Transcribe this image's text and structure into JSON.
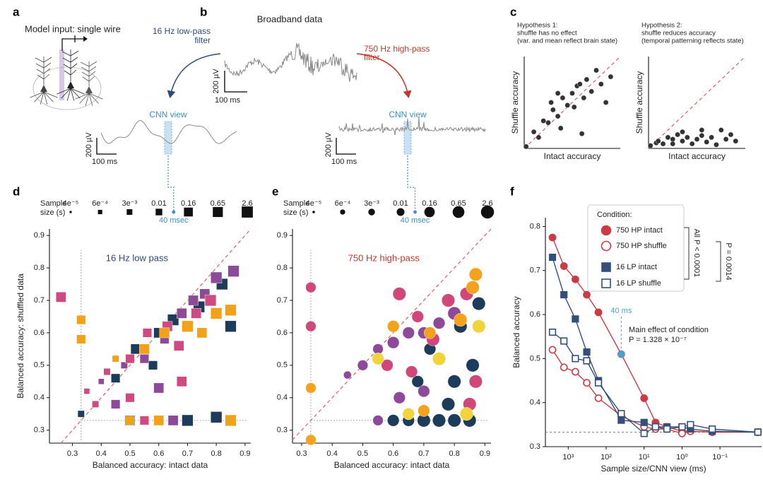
{
  "panel_labels": [
    "a",
    "b",
    "c",
    "d",
    "e",
    "f"
  ],
  "panel_a": {
    "title": "Model input: single wire"
  },
  "panel_b": {
    "title": "Broadband data",
    "low_pass": [
      "16 Hz low-pass",
      "filter"
    ],
    "high_pass": [
      "750 Hz high-pass",
      "filter"
    ],
    "cnn_view": "CNN view",
    "amplitude_scale": "200 µV",
    "time_scale": "100 ms"
  },
  "chart_data": [
    {
      "type": "scatter",
      "title": [
        "Hypothesis 1:",
        "shuffle has no effect",
        "(var. and mean reflect brain state)"
      ],
      "x_label": "Intact accuracy",
      "y_label": "Shuffle accuracy",
      "xlim": [
        0,
        1
      ],
      "ylim": [
        0,
        1
      ],
      "identity_line": true,
      "series": [
        {
          "color": "#333333",
          "x": [
            0.02,
            0.1,
            0.15,
            0.2,
            0.25,
            0.3,
            0.35,
            0.38,
            0.4,
            0.45,
            0.5,
            0.52,
            0.55,
            0.58,
            0.6,
            0.62,
            0.65,
            0.7,
            0.75,
            0.8,
            0.85,
            0.9,
            0.35,
            0.28
          ],
          "y": [
            0.02,
            0.18,
            0.12,
            0.3,
            0.28,
            0.42,
            0.35,
            0.22,
            0.55,
            0.47,
            0.6,
            0.45,
            0.68,
            0.7,
            0.16,
            0.55,
            0.75,
            0.62,
            0.85,
            0.7,
            0.5,
            0.78,
            0.6,
            0.5
          ]
        }
      ]
    },
    {
      "type": "scatter",
      "title": [
        "Hypothesis 2:",
        "shuffle reduces accuracy",
        "(temporal patterning reflects state)"
      ],
      "x_label": "Intact accuracy",
      "y_label": "Shuffle accuracy",
      "xlim": [
        0,
        1
      ],
      "ylim": [
        0,
        1
      ],
      "identity_line": true,
      "series": [
        {
          "color": "#333333",
          "x": [
            0.02,
            0.08,
            0.1,
            0.15,
            0.2,
            0.25,
            0.3,
            0.35,
            0.4,
            0.45,
            0.5,
            0.55,
            0.6,
            0.65,
            0.7,
            0.75,
            0.8,
            0.85,
            0.9,
            0.55,
            0.35,
            0.25
          ],
          "y": [
            0.03,
            0.06,
            0.08,
            0.05,
            0.12,
            0.1,
            0.15,
            0.08,
            0.12,
            0.05,
            0.1,
            0.14,
            0.07,
            0.12,
            0.04,
            0.2,
            0.1,
            0.15,
            0.08,
            0.2,
            0.18,
            0.05
          ]
        }
      ]
    },
    {
      "type": "scatter",
      "title": "16 Hz low pass",
      "title_color": "#2e4a6e",
      "x_label": "Balanced accuracy: intact data",
      "y_label": "Balanced accuracy: shuffled data",
      "xlim": [
        0.22,
        0.92
      ],
      "ylim": [
        0.26,
        0.92
      ],
      "xticks": [
        0.3,
        0.4,
        0.5,
        0.6,
        0.7,
        0.8,
        0.9
      ],
      "yticks": [
        0.3,
        0.4,
        0.5,
        0.6,
        0.7,
        0.8,
        0.9
      ],
      "chance": 0.33,
      "identity_line": true,
      "marker": "square",
      "size_legend": {
        "title": [
          "Sample",
          "size (s)"
        ],
        "color": "#111111",
        "sizes": [
          {
            "value": 4e-05,
            "label": "4e⁻⁵"
          },
          {
            "value": 0.0006,
            "label": "6e⁻⁴"
          },
          {
            "value": 0.003,
            "label": "3e⁻³"
          },
          0.01,
          0.16,
          0.65,
          2.6
        ]
      },
      "annotation": {
        "text": "40 msec",
        "value": 0.04,
        "color": "#3b8fd0"
      },
      "series": [
        {
          "color": "#1d3b5a",
          "x": [
            0.33,
            0.45,
            0.52,
            0.6,
            0.65,
            0.7,
            0.74,
            0.78,
            0.82,
            0.85,
            0.7,
            0.8,
            0.5,
            0.58
          ],
          "y": [
            0.35,
            0.46,
            0.55,
            0.6,
            0.64,
            0.62,
            0.68,
            0.7,
            0.75,
            0.62,
            0.33,
            0.34,
            0.33,
            0.5
          ],
          "sizes": [
            0.01,
            0.16,
            0.65,
            0.65,
            2.6,
            0.65,
            2.6,
            2.6,
            2.6,
            2.6,
            2.6,
            2.6,
            0.65,
            0.16
          ]
        },
        {
          "color": "#8d4a99",
          "x": [
            0.4,
            0.48,
            0.55,
            0.62,
            0.68,
            0.72,
            0.76,
            0.8,
            0.86,
            0.45,
            0.6,
            0.65
          ],
          "y": [
            0.45,
            0.5,
            0.52,
            0.58,
            0.66,
            0.7,
            0.72,
            0.77,
            0.79,
            0.38,
            0.43,
            0.33
          ],
          "sizes": [
            0.003,
            0.01,
            0.16,
            0.16,
            0.65,
            0.65,
            0.65,
            2.6,
            2.6,
            0.16,
            0.65,
            0.65
          ]
        },
        {
          "color": "#cf4a80",
          "x": [
            0.26,
            0.35,
            0.42,
            0.5,
            0.56,
            0.63,
            0.67,
            0.73,
            0.78,
            0.38,
            0.5,
            0.55,
            0.68
          ],
          "y": [
            0.71,
            0.42,
            0.48,
            0.52,
            0.6,
            0.62,
            0.56,
            0.66,
            0.7,
            0.38,
            0.4,
            0.33,
            0.45
          ],
          "sizes": [
            0.65,
            0.003,
            0.01,
            0.16,
            0.16,
            0.65,
            0.65,
            0.65,
            2.6,
            0.01,
            0.16,
            0.16,
            0.65
          ]
        },
        {
          "color": "#f2a219",
          "x": [
            0.33,
            0.33,
            0.5,
            0.55,
            0.62,
            0.7,
            0.75,
            0.8,
            0.85,
            0.85,
            0.6,
            0.45
          ],
          "y": [
            0.58,
            0.64,
            0.33,
            0.55,
            0.6,
            0.62,
            0.6,
            0.66,
            0.67,
            0.33,
            0.33,
            0.52
          ],
          "sizes": [
            0.16,
            0.16,
            0.16,
            0.65,
            0.65,
            2.6,
            0.65,
            2.6,
            2.6,
            2.6,
            0.65,
            0.01
          ]
        }
      ]
    },
    {
      "type": "scatter",
      "title": "750 Hz high-pass",
      "title_color": "#c0392b",
      "x_label": "Balanced accuracy: intact data",
      "xlim": [
        0.27,
        0.92
      ],
      "ylim": [
        0.26,
        0.92
      ],
      "xticks": [
        0.3,
        0.4,
        0.5,
        0.6,
        0.7,
        0.8,
        0.9
      ],
      "yticks": [
        0.3,
        0.4,
        0.5,
        0.6,
        0.7,
        0.8,
        0.9
      ],
      "chance": 0.33,
      "identity_line": true,
      "marker": "circle",
      "size_legend": {
        "title": [
          "Sample",
          "size (s)"
        ],
        "color": "#111111",
        "sizes": [
          {
            "value": 4e-05,
            "label": "4e⁻⁵"
          },
          {
            "value": 0.0006,
            "label": "6e⁻⁴"
          },
          {
            "value": 0.003,
            "label": "3e⁻³"
          },
          0.01,
          0.16,
          0.65,
          2.6
        ]
      },
      "annotation": {
        "text": "40 msec",
        "value": 0.04,
        "color": "#3b8fd0"
      },
      "series": [
        {
          "color": "#1d3b5a",
          "x": [
            0.6,
            0.65,
            0.7,
            0.75,
            0.8,
            0.85,
            0.88,
            0.72,
            0.82,
            0.86,
            0.78,
            0.68,
            0.8
          ],
          "y": [
            0.33,
            0.33,
            0.33,
            0.33,
            0.33,
            0.33,
            0.69,
            0.55,
            0.62,
            0.5,
            0.38,
            0.45,
            0.45
          ],
          "sizes": [
            0.65,
            0.65,
            2.6,
            2.6,
            2.6,
            2.6,
            2.6,
            0.65,
            2.6,
            2.6,
            2.6,
            0.65,
            2.6
          ]
        },
        {
          "color": "#8d4a99",
          "x": [
            0.45,
            0.5,
            0.55,
            0.6,
            0.65,
            0.7,
            0.75,
            0.8,
            0.62,
            0.7,
            0.55
          ],
          "y": [
            0.47,
            0.5,
            0.55,
            0.57,
            0.6,
            0.6,
            0.63,
            0.66,
            0.4,
            0.42,
            0.33
          ],
          "sizes": [
            0.01,
            0.16,
            0.16,
            0.65,
            0.65,
            0.65,
            0.65,
            2.6,
            0.65,
            0.65,
            0.16
          ]
        },
        {
          "color": "#d0477a",
          "x": [
            0.33,
            0.33,
            0.62,
            0.68,
            0.73,
            0.78,
            0.84,
            0.87,
            0.58,
            0.66,
            0.85
          ],
          "y": [
            0.74,
            0.62,
            0.72,
            0.65,
            0.58,
            0.7,
            0.72,
            0.45,
            0.5,
            0.48,
            0.38
          ],
          "sizes": [
            0.16,
            0.16,
            2.6,
            0.65,
            2.6,
            2.6,
            2.6,
            2.6,
            0.65,
            0.65,
            2.6
          ]
        },
        {
          "color": "#f2a21b",
          "x": [
            0.33,
            0.33,
            0.6,
            0.72,
            0.82,
            0.86,
            0.7,
            0.87
          ],
          "y": [
            0.43,
            0.27,
            0.62,
            0.6,
            0.64,
            0.74,
            0.36,
            0.78
          ],
          "sizes": [
            0.16,
            0.16,
            0.65,
            0.65,
            2.6,
            2.6,
            0.65,
            2.6
          ]
        },
        {
          "color": "#f0d43a",
          "x": [
            0.55,
            0.75,
            0.88,
            0.84,
            0.65
          ],
          "y": [
            0.52,
            0.52,
            0.62,
            0.35,
            0.35
          ],
          "sizes": [
            0.65,
            2.6,
            2.6,
            2.6,
            0.65
          ]
        }
      ]
    },
    {
      "type": "line",
      "x_label": "Sample size/CNN view (ms)",
      "y_label": "Balanced accuracy",
      "log_x": true,
      "xlim": [
        4000,
        0.008
      ],
      "ylim": [
        0.3,
        0.82
      ],
      "xticks": [
        {
          "value": 1000,
          "label": "10³"
        },
        {
          "value": 100,
          "label": "10²"
        },
        {
          "value": 10,
          "label": "10¹"
        },
        {
          "value": 1,
          "label": "10⁰"
        },
        {
          "value": 0.1,
          "label": "10⁻¹"
        }
      ],
      "yticks": [
        0.3,
        0.4,
        0.5,
        0.6,
        0.7,
        0.8
      ],
      "chance": 0.333,
      "x": [
        2600,
        1300,
        650,
        325,
        160,
        40,
        10,
        5,
        2.5,
        1,
        0.6,
        0.16,
        0.01
      ],
      "legend_title": "Condition:",
      "series": [
        {
          "name": "750 HP intact",
          "color": "#cc3b43",
          "marker": "circle",
          "filled": true,
          "values": [
            0.775,
            0.71,
            0.68,
            0.645,
            0.605,
            0.51,
            0.41,
            0.355,
            0.345,
            0.335,
            0.335,
            0.333,
            0.333
          ]
        },
        {
          "name": "750 HP shuffle",
          "color": "#cc3b43",
          "marker": "circle",
          "filled": false,
          "values": [
            0.52,
            0.48,
            0.47,
            0.445,
            0.41,
            0.37,
            0.345,
            0.34,
            0.34,
            0.33,
            0.335,
            0.333,
            0.333
          ]
        },
        {
          "name": "16 LP intact",
          "color": "#34507a",
          "marker": "square",
          "filled": true,
          "values": [
            0.73,
            0.645,
            0.59,
            0.515,
            0.45,
            0.36,
            0.355,
            0.345,
            0.345,
            0.345,
            0.34,
            0.335,
            0.333
          ]
        },
        {
          "name": "16 LP shuffle",
          "color": "#34507a",
          "marker": "square",
          "filled": false,
          "values": [
            0.56,
            0.54,
            0.5,
            0.495,
            0.445,
            0.375,
            0.33,
            0.345,
            0.34,
            0.345,
            0.35,
            0.34,
            0.333
          ]
        }
      ],
      "highlight": {
        "text": "40 ms",
        "x": 40,
        "color": "#4a9fd8"
      },
      "annotation": [
        "Main effect of condition",
        "P = 1.328 × 10⁻⁷"
      ],
      "brackets": [
        "All P < 0.0001",
        "P = 0.0014"
      ]
    }
  ]
}
